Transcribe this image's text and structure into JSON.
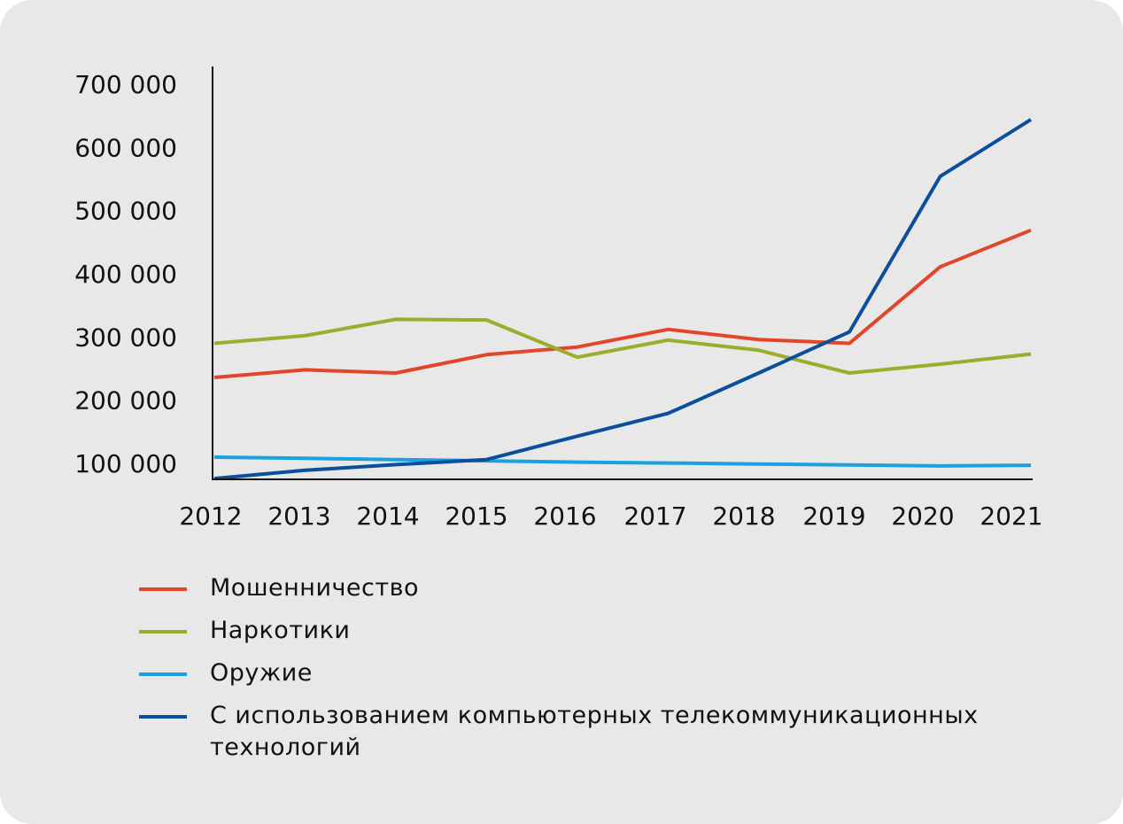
{
  "colors": {
    "background": "#e8e8e8",
    "axis": "#111111",
    "fraud": "#e2462a",
    "drugs": "#9cac2c",
    "weapons": "#1ba0e2",
    "cyber": "#0b4f9c"
  },
  "chart_data": {
    "type": "line",
    "categories": [
      "2012",
      "2013",
      "2014",
      "2015",
      "2016",
      "2017",
      "2018",
      "2019",
      "2020",
      "2021"
    ],
    "x_tick_labels": [
      "2012",
      "2013",
      "2014",
      "2015",
      "2016",
      "2017",
      "2018",
      "2019",
      "2020",
      "2021"
    ],
    "y_tick_labels": [
      "100 000",
      "200 000",
      "300 000",
      "400 000",
      "500 000",
      "600 000",
      "700 000"
    ],
    "y_ticks": [
      100000,
      200000,
      300000,
      400000,
      500000,
      600000,
      700000
    ],
    "ylim": [
      75000,
      720000
    ],
    "xlabel": "",
    "ylabel": "",
    "title": "",
    "grid": false,
    "legend_position": "bottom",
    "series": [
      {
        "name": "Мошенничество",
        "color": "#e2462a",
        "values": [
          236000,
          248000,
          243000,
          272000,
          284000,
          312000,
          296000,
          290000,
          411000,
          469000
        ]
      },
      {
        "name": "Наркотики",
        "color": "#9cac2c",
        "values": [
          290000,
          302000,
          328000,
          327000,
          268000,
          295000,
          279000,
          243000,
          257000,
          273000
        ]
      },
      {
        "name": "Оружие",
        "color": "#1ba0e2",
        "values": [
          110000,
          108000,
          106000,
          104000,
          102000,
          100500,
          99000,
          97500,
          96000,
          97000
        ]
      },
      {
        "name": "С использованием компьютерных телекоммуникационных технологий",
        "color": "#0b4f9c",
        "values": [
          76000,
          89000,
          98000,
          106000,
          143000,
          179000,
          243000,
          308000,
          554000,
          644000
        ]
      }
    ]
  }
}
